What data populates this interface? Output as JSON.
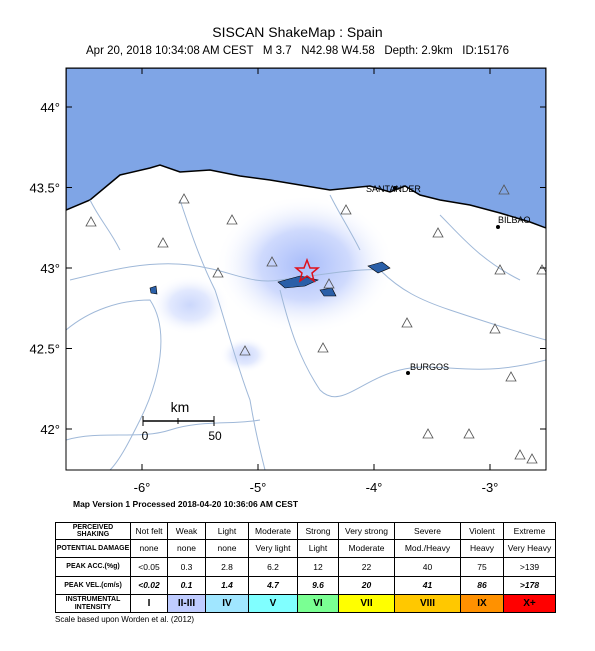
{
  "header": {
    "title": "SISCAN ShakeMap : Spain",
    "subtitle": "Apr 20, 2018 10:34:08 AM CEST   M 3.7   N42.98 W4.58   Depth: 2.9km   ID:15176"
  },
  "map": {
    "lat_ticks": [
      {
        "value": 42,
        "label": "42°"
      },
      {
        "value": 42.5,
        "label": "42.5°"
      },
      {
        "value": 43,
        "label": "43°"
      },
      {
        "value": 43.5,
        "label": "43.5°"
      },
      {
        "value": 44,
        "label": "44°"
      }
    ],
    "lon_ticks": [
      {
        "value": -6,
        "label": "-6°"
      },
      {
        "value": -5,
        "label": "-5°"
      },
      {
        "value": -4,
        "label": "-4°"
      },
      {
        "value": -3,
        "label": "-3°"
      }
    ],
    "cities": [
      "SANTANDER",
      "BILBAO",
      "BURGOS"
    ],
    "scale_bar": {
      "unit": "km",
      "labels": [
        "0",
        "50"
      ]
    },
    "footer": "Map Version 1 Processed 2018-04-20 10:36:06 AM CEST"
  },
  "legend": {
    "rows": [
      {
        "label": "PERCEIVED SHAKING",
        "cells": [
          "Not felt",
          "Weak",
          "Light",
          "Moderate",
          "Strong",
          "Very strong",
          "Severe",
          "Violent",
          "Extreme"
        ]
      },
      {
        "label": "POTENTIAL DAMAGE",
        "cells": [
          "none",
          "none",
          "none",
          "Very light",
          "Light",
          "Moderate",
          "Mod./Heavy",
          "Heavy",
          "Very Heavy"
        ]
      },
      {
        "label": "PEAK ACC.(%g)",
        "cells": [
          "<0.05",
          "0.3",
          "2.8",
          "6.2",
          "12",
          "22",
          "40",
          "75",
          ">139"
        ]
      },
      {
        "label": "PEAK VEL.(cm/s)",
        "cells": [
          "<0.02",
          "0.1",
          "1.4",
          "4.7",
          "9.6",
          "20",
          "41",
          "86",
          ">178"
        ]
      },
      {
        "label": "INSTRUMENTAL INTENSITY",
        "cells": [
          "I",
          "II-III",
          "IV",
          "V",
          "VI",
          "VII",
          "VIII",
          "IX",
          "X+"
        ]
      }
    ],
    "note": "Scale based upon Worden et al. (2012)"
  }
}
